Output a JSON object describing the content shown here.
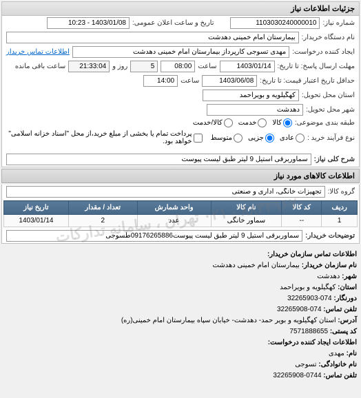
{
  "panel_title": "جزئیات اطلاعات نیاز",
  "fields": {
    "number_label": "شماره نیاز:",
    "number_value": "1103030240000010",
    "announce_label": "تاریخ و ساعت اعلان عمومی:",
    "announce_value": "1403/01/08 - 10:23",
    "buyer_label": "نام دستگاه خریدار:",
    "buyer_value": "بیمارستان امام خمینی دهدشت",
    "creator_label": "ایجاد کننده درخواست:",
    "creator_value": "مهدی تسوجی کارپرداز بیمارستان امام خمینی دهدشت",
    "contact_link": "اطلاعات تماس خریدار",
    "deadline_label": "مهلت ارسال پاسخ: تا تاریخ:",
    "deadline_date": "1403/01/14",
    "deadline_time_label": "ساعت",
    "deadline_time": "08:00",
    "remaining_days": "5",
    "remaining_days_label": "روز و",
    "remaining_time": "21:33:04",
    "remaining_label": "ساعت باقی مانده",
    "validity_label": "حداقل تاریخ اعتبار قیمت: تا تاریخ:",
    "validity_date": "1403/06/08",
    "validity_time": "14:00",
    "province_label": "استان محل تحویل:",
    "province_value": "کهگیلویه و بویراحمد",
    "city_label": "شهر محل تحویل:",
    "city_value": "دهدشت",
    "category_label": "طبقه بندی موضوعی:",
    "buy_type_label": "نوع فرآیند خرید :",
    "payment_note": "پرداخت تمام یا بخشی از مبلغ خرید،از محل \"اسناد خزانه اسلامی\" خواهد بود.",
    "desc_label": "شرح کلی نیاز:",
    "desc_value": "سماوربرقی استیل 9 لیتر طبق لیست پیوست",
    "items_header": "اطلاعات کالاهای مورد نیاز",
    "group_label": "گروه کالا:",
    "group_value": "تجهیزات خانگی، اداری و صنعتی",
    "comment_label": "توضیحات خریدار:",
    "comment_value": "سماوربرقی استیل 9 لیتر طبق لیست پیوست09176265886طسوجی"
  },
  "radios": {
    "category": [
      {
        "label": "کالا",
        "checked": true
      },
      {
        "label": "خدمت",
        "checked": false
      },
      {
        "label": "کالا/خدمت",
        "checked": false
      }
    ],
    "buy_type": [
      {
        "label": "عادی",
        "checked": false
      },
      {
        "label": "جزیی",
        "checked": true
      },
      {
        "label": "متوسط",
        "checked": false
      }
    ]
  },
  "table": {
    "columns": [
      "ردیف",
      "کد کالا",
      "نام کالا",
      "واحد شمارش",
      "تعداد / مقدار",
      "تاریخ نیاز"
    ],
    "rows": [
      [
        "1",
        "--",
        "سماور خانگی",
        "عدد",
        "2",
        "1403/01/14"
      ]
    ]
  },
  "contact": {
    "header": "اطلاعات تماس سازمان خریدار:",
    "org_label": "نام سازمان خریدار:",
    "org_value": "بیمارستان امام خمینی دهدشت",
    "city_label": "شهر:",
    "city_value": "دهدشت",
    "province_label": "استان:",
    "province_value": "کهگیلویه و بویراحمد",
    "fax_label": "دورنگار:",
    "fax_value": "074-32265903",
    "phone_label": "تلفن تماس:",
    "phone_value": "074-32265908",
    "address_label": "آدرس:",
    "address_value": "استان کهگیلویه و بویر حمد- دهدشت- خیابان سپاه بیمارستان امام خمینی(ره)",
    "postal_label": "کد پستی:",
    "postal_value": "7571888655",
    "creator_header": "اطلاعات ایجاد کننده درخواست:",
    "name_label": "نام:",
    "name_value": "مهدی",
    "family_label": "نام خانوادگی:",
    "family_value": "تسوجی",
    "creator_phone_label": "تلفن تماس:",
    "creator_phone_value": "0744-32265908"
  },
  "watermark": "۸۸۳۴۹۶۷۰ - ۰۲۱    تهران ، سامانه تدارکات"
}
